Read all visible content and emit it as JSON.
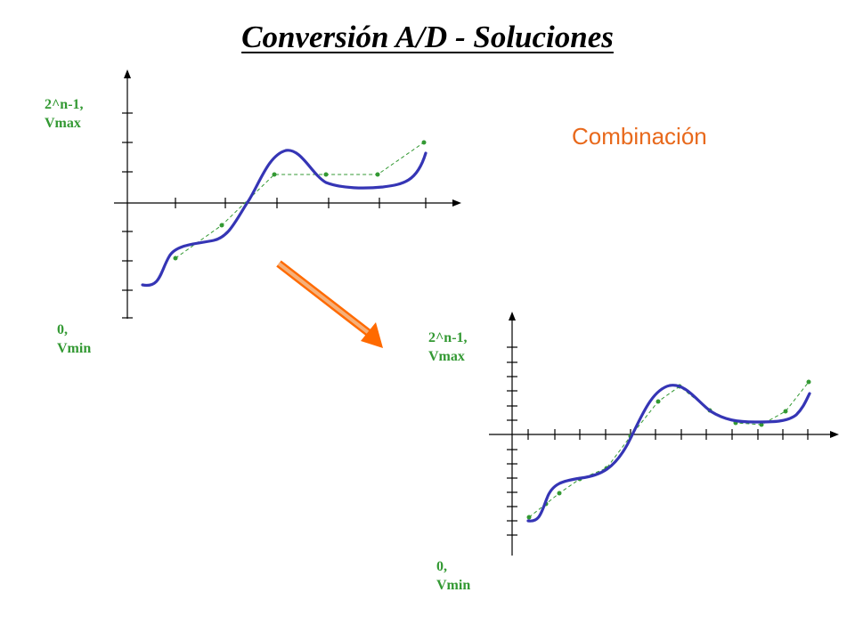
{
  "title": "Conversión A/D - Soluciones",
  "note": "Combinación",
  "colors": {
    "signal": "#3535b5",
    "samples": "#339933",
    "axis": "#000000",
    "note": "#e8691c",
    "arrow_fill": "#ff6a00",
    "arrow_stripes": "#f5b07a"
  },
  "graphs": [
    {
      "max_label": "2^n-1,\nVmax",
      "min_label": "0,\nVmin"
    },
    {
      "max_label": "2^n-1,\nVmax",
      "min_label": "0,\nVmin"
    }
  ],
  "icons": {
    "arrow": "diagonal-arrow-icon"
  }
}
